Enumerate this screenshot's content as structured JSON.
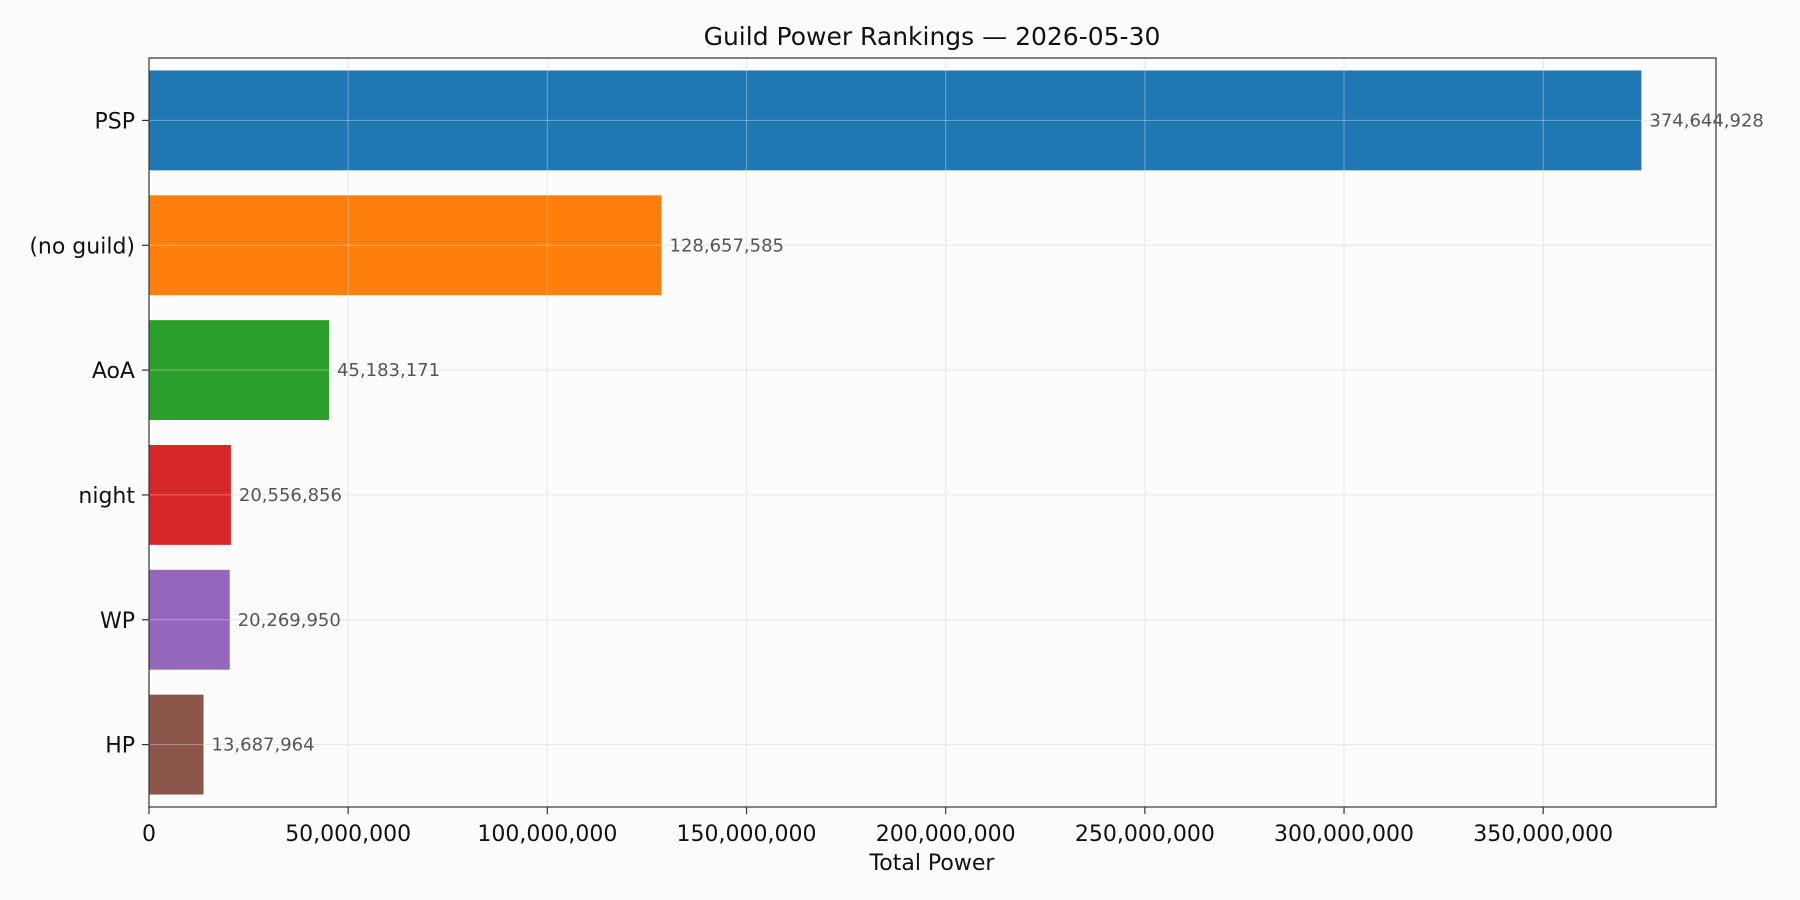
{
  "chart_data": {
    "type": "bar",
    "orientation": "horizontal",
    "title": "Guild Power Rankings — 2026-05-30",
    "xlabel": "Total Power",
    "ylabel": "",
    "categories": [
      "PSP",
      "(no guild)",
      "AoA",
      "night",
      "WP",
      "HP"
    ],
    "values": [
      374644928,
      128657585,
      45183171,
      20556856,
      20269950,
      13687964
    ],
    "value_labels": [
      "374,644,928",
      "128,657,585",
      "45,183,171",
      "20,556,856",
      "20,269,950",
      "13,687,964"
    ],
    "colors": [
      "#1f77b4",
      "#ff7f0e",
      "#2ca02c",
      "#d62728",
      "#9467bd",
      "#8c564b"
    ],
    "xlim": [
      0,
      393377174
    ],
    "xticks": [
      0,
      50000000,
      100000000,
      150000000,
      200000000,
      250000000,
      300000000,
      350000000
    ],
    "xtick_labels": [
      "0",
      "50,000,000",
      "100,000,000",
      "150,000,000",
      "200,000,000",
      "250,000,000",
      "300,000,000",
      "350,000,000"
    ],
    "grid": true
  }
}
